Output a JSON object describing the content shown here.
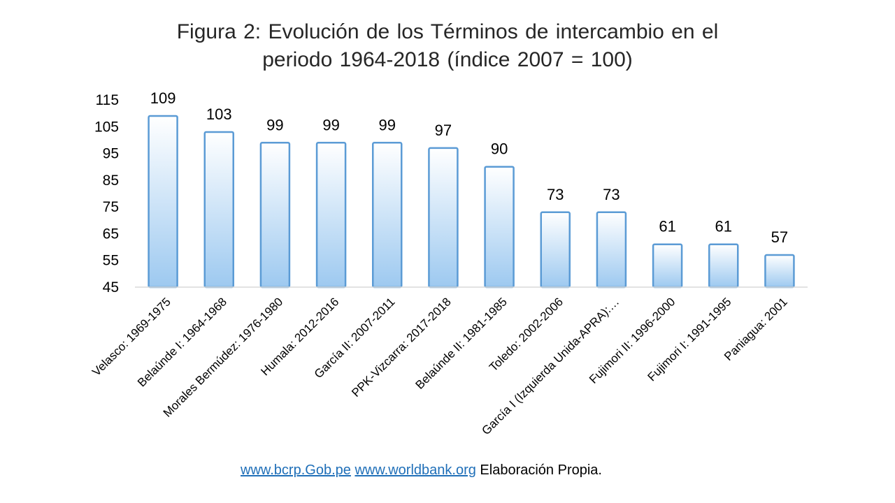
{
  "title": {
    "line1": "Figura 2: Evolución  de los Términos  de intercambio  en el",
    "line2": "periodo  1964-2018  (índice  2007 = 100)"
  },
  "chart_data": {
    "type": "bar",
    "categories": [
      "Velasco: 1969-1975",
      "Belaúnde I: 1964-1968",
      "Morales Bermúdez: 1976-1980",
      "Humala: 2012-2016",
      "García II: 2007-2011",
      "PPK-Vizcarra: 2017-2018",
      "Belaúnde II: 1981-1985",
      "Toledo: 2002-2006",
      "García I (Izquierda Unida-APRA):…",
      "Fujimori II: 1996-2000",
      "Fujimori I: 1991-1995",
      "Paniagua: 2001"
    ],
    "values": [
      109,
      103,
      99,
      99,
      99,
      97,
      90,
      73,
      73,
      61,
      61,
      57
    ],
    "data_labels": [
      "109",
      "103",
      "99",
      "99",
      "99",
      "97",
      "90",
      "73",
      "73",
      "61",
      "61",
      "57"
    ],
    "yticks": [
      "45",
      "55",
      "65",
      "75",
      "85",
      "95",
      "105",
      "115"
    ],
    "ylim": [
      45,
      115
    ],
    "grid": false,
    "bar_fill_top": "#ffffff",
    "bar_fill_bottom": "#9dc9f0",
    "bar_stroke": "#5b9bd5",
    "axis_color": "#d9d9d9",
    "text_color": "#000000"
  },
  "footer": {
    "link1": "www.bcrp.Gob.pe",
    "link2": "www.worldbank.org",
    "text": "Elaboración Propia."
  }
}
